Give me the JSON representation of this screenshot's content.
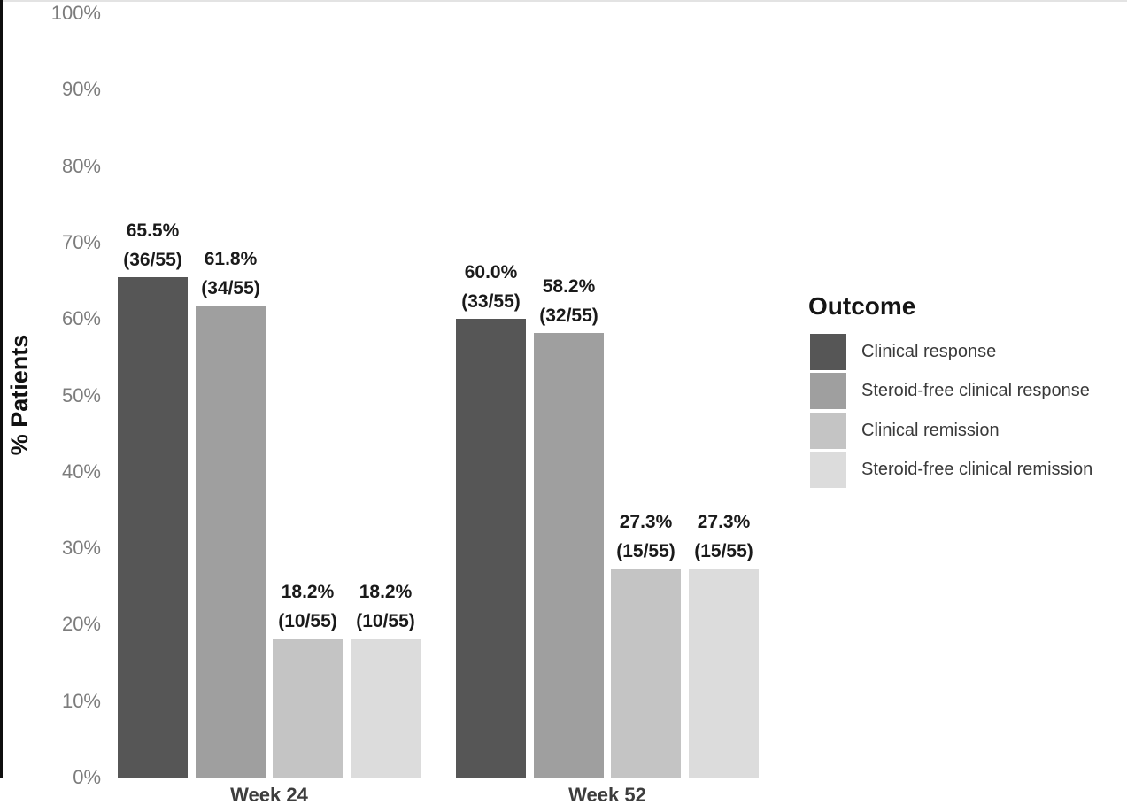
{
  "chart_data": {
    "type": "bar",
    "title": "",
    "ylabel": "% Patients",
    "xlabel": "",
    "categories": [
      "Week 24",
      "Week 52"
    ],
    "series": [
      {
        "name": "Clinical response",
        "color": "#565656",
        "values": [
          65.5,
          60.0
        ],
        "value_labels": [
          "65.5%",
          "60.0%"
        ],
        "count_labels": [
          "(36/55)",
          "(33/55)"
        ]
      },
      {
        "name": "Steroid-free clinical response",
        "color": "#9f9f9f",
        "values": [
          61.8,
          58.2
        ],
        "value_labels": [
          "61.8%",
          "58.2%"
        ],
        "count_labels": [
          "(34/55)",
          "(32/55)"
        ]
      },
      {
        "name": "Clinical remission",
        "color": "#c4c4c4",
        "values": [
          18.2,
          27.3
        ],
        "value_labels": [
          "18.2%",
          "27.3%"
        ],
        "count_labels": [
          "(10/55)",
          "(15/55)"
        ]
      },
      {
        "name": "Steroid-free clinical remission",
        "color": "#dcdcdc",
        "values": [
          18.2,
          27.3
        ],
        "value_labels": [
          "18.2%",
          "27.3%"
        ],
        "count_labels": [
          "(10/55)",
          "(15/55)"
        ]
      }
    ],
    "y_ticks": [
      {
        "value": 0,
        "label": "0%"
      },
      {
        "value": 10,
        "label": "10%"
      },
      {
        "value": 20,
        "label": "20%"
      },
      {
        "value": 30,
        "label": "30%"
      },
      {
        "value": 40,
        "label": "40%"
      },
      {
        "value": 50,
        "label": "50%"
      },
      {
        "value": 60,
        "label": "60%"
      },
      {
        "value": 70,
        "label": "70%"
      },
      {
        "value": 80,
        "label": "80%"
      },
      {
        "value": 90,
        "label": "90%"
      },
      {
        "value": 100,
        "label": "100%"
      }
    ],
    "ylim": [
      0,
      100
    ],
    "grid": false,
    "legend": {
      "title": "Outcome",
      "position": "right"
    },
    "tick_color": "#7c7c7c",
    "label_color": "#1a1a1a",
    "background_color": "#ffffff"
  }
}
